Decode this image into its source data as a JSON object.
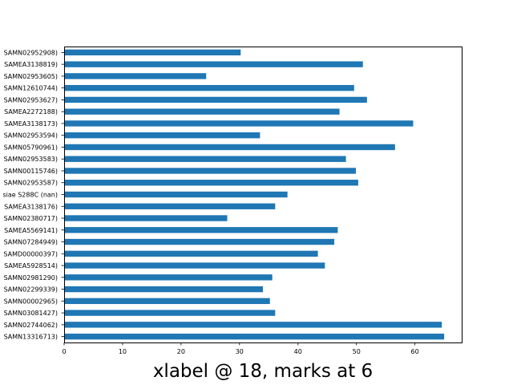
{
  "chart_data": {
    "type": "bar",
    "orientation": "horizontal",
    "title": "",
    "xlabel": "xlabel @ 18, marks at 6",
    "ylabel": "",
    "xlim": [
      0,
      68
    ],
    "xticks": [
      0,
      10,
      20,
      30,
      40,
      50,
      60
    ],
    "grid": false,
    "bar_color": "#1f77b4",
    "categories": [
      "SAMN13316713)",
      "SAMN02744062)",
      "SAMN03081427)",
      "SAMN00002965)",
      "SAMN02299339)",
      "SAMN02981290)",
      "SAMEA5928514)",
      "SAMD00000397)",
      "SAMN07284949)",
      "SAMEA5569141)",
      "SAMN02380717)",
      "SAMEA3138176)",
      "siae S288C (nan)",
      "SAMN02953587)",
      "SAMN00115746)",
      "SAMN02953583)",
      "SAMN05790961)",
      "SAMN02953594)",
      "SAMEA3138173)",
      "SAMEA2272188)",
      "SAMN02953627)",
      "SAMN12610744)",
      "SAMN02953605)",
      "SAMEA3138819)",
      "SAMN02952908)"
    ],
    "values": [
      65.0,
      64.6,
      36.1,
      35.2,
      34.0,
      35.6,
      44.6,
      43.4,
      46.2,
      46.8,
      27.9,
      36.1,
      38.2,
      50.3,
      49.9,
      48.2,
      56.6,
      33.5,
      59.7,
      47.1,
      51.8,
      49.6,
      24.3,
      51.1,
      30.2
    ]
  }
}
